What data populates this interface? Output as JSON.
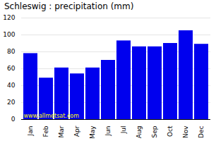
{
  "chart_data": {
    "type": "bar",
    "title": "Schleswig : precipitation (mm)",
    "categories": [
      "Jan",
      "Feb",
      "Mar",
      "Apr",
      "May",
      "Jun",
      "Jul",
      "Aug",
      "Sep",
      "Oct",
      "Nov",
      "Dec"
    ],
    "values": [
      78,
      49,
      61,
      54,
      61,
      70,
      93,
      86,
      86,
      90,
      105,
      89
    ],
    "color": "#0000ee",
    "ylim": [
      0,
      120
    ],
    "yticks": [
      0,
      20,
      40,
      60,
      80,
      100,
      120
    ],
    "grid": true,
    "annotations": [
      {
        "text": "www.allmetsat.com",
        "color": "#ffff00"
      }
    ]
  }
}
